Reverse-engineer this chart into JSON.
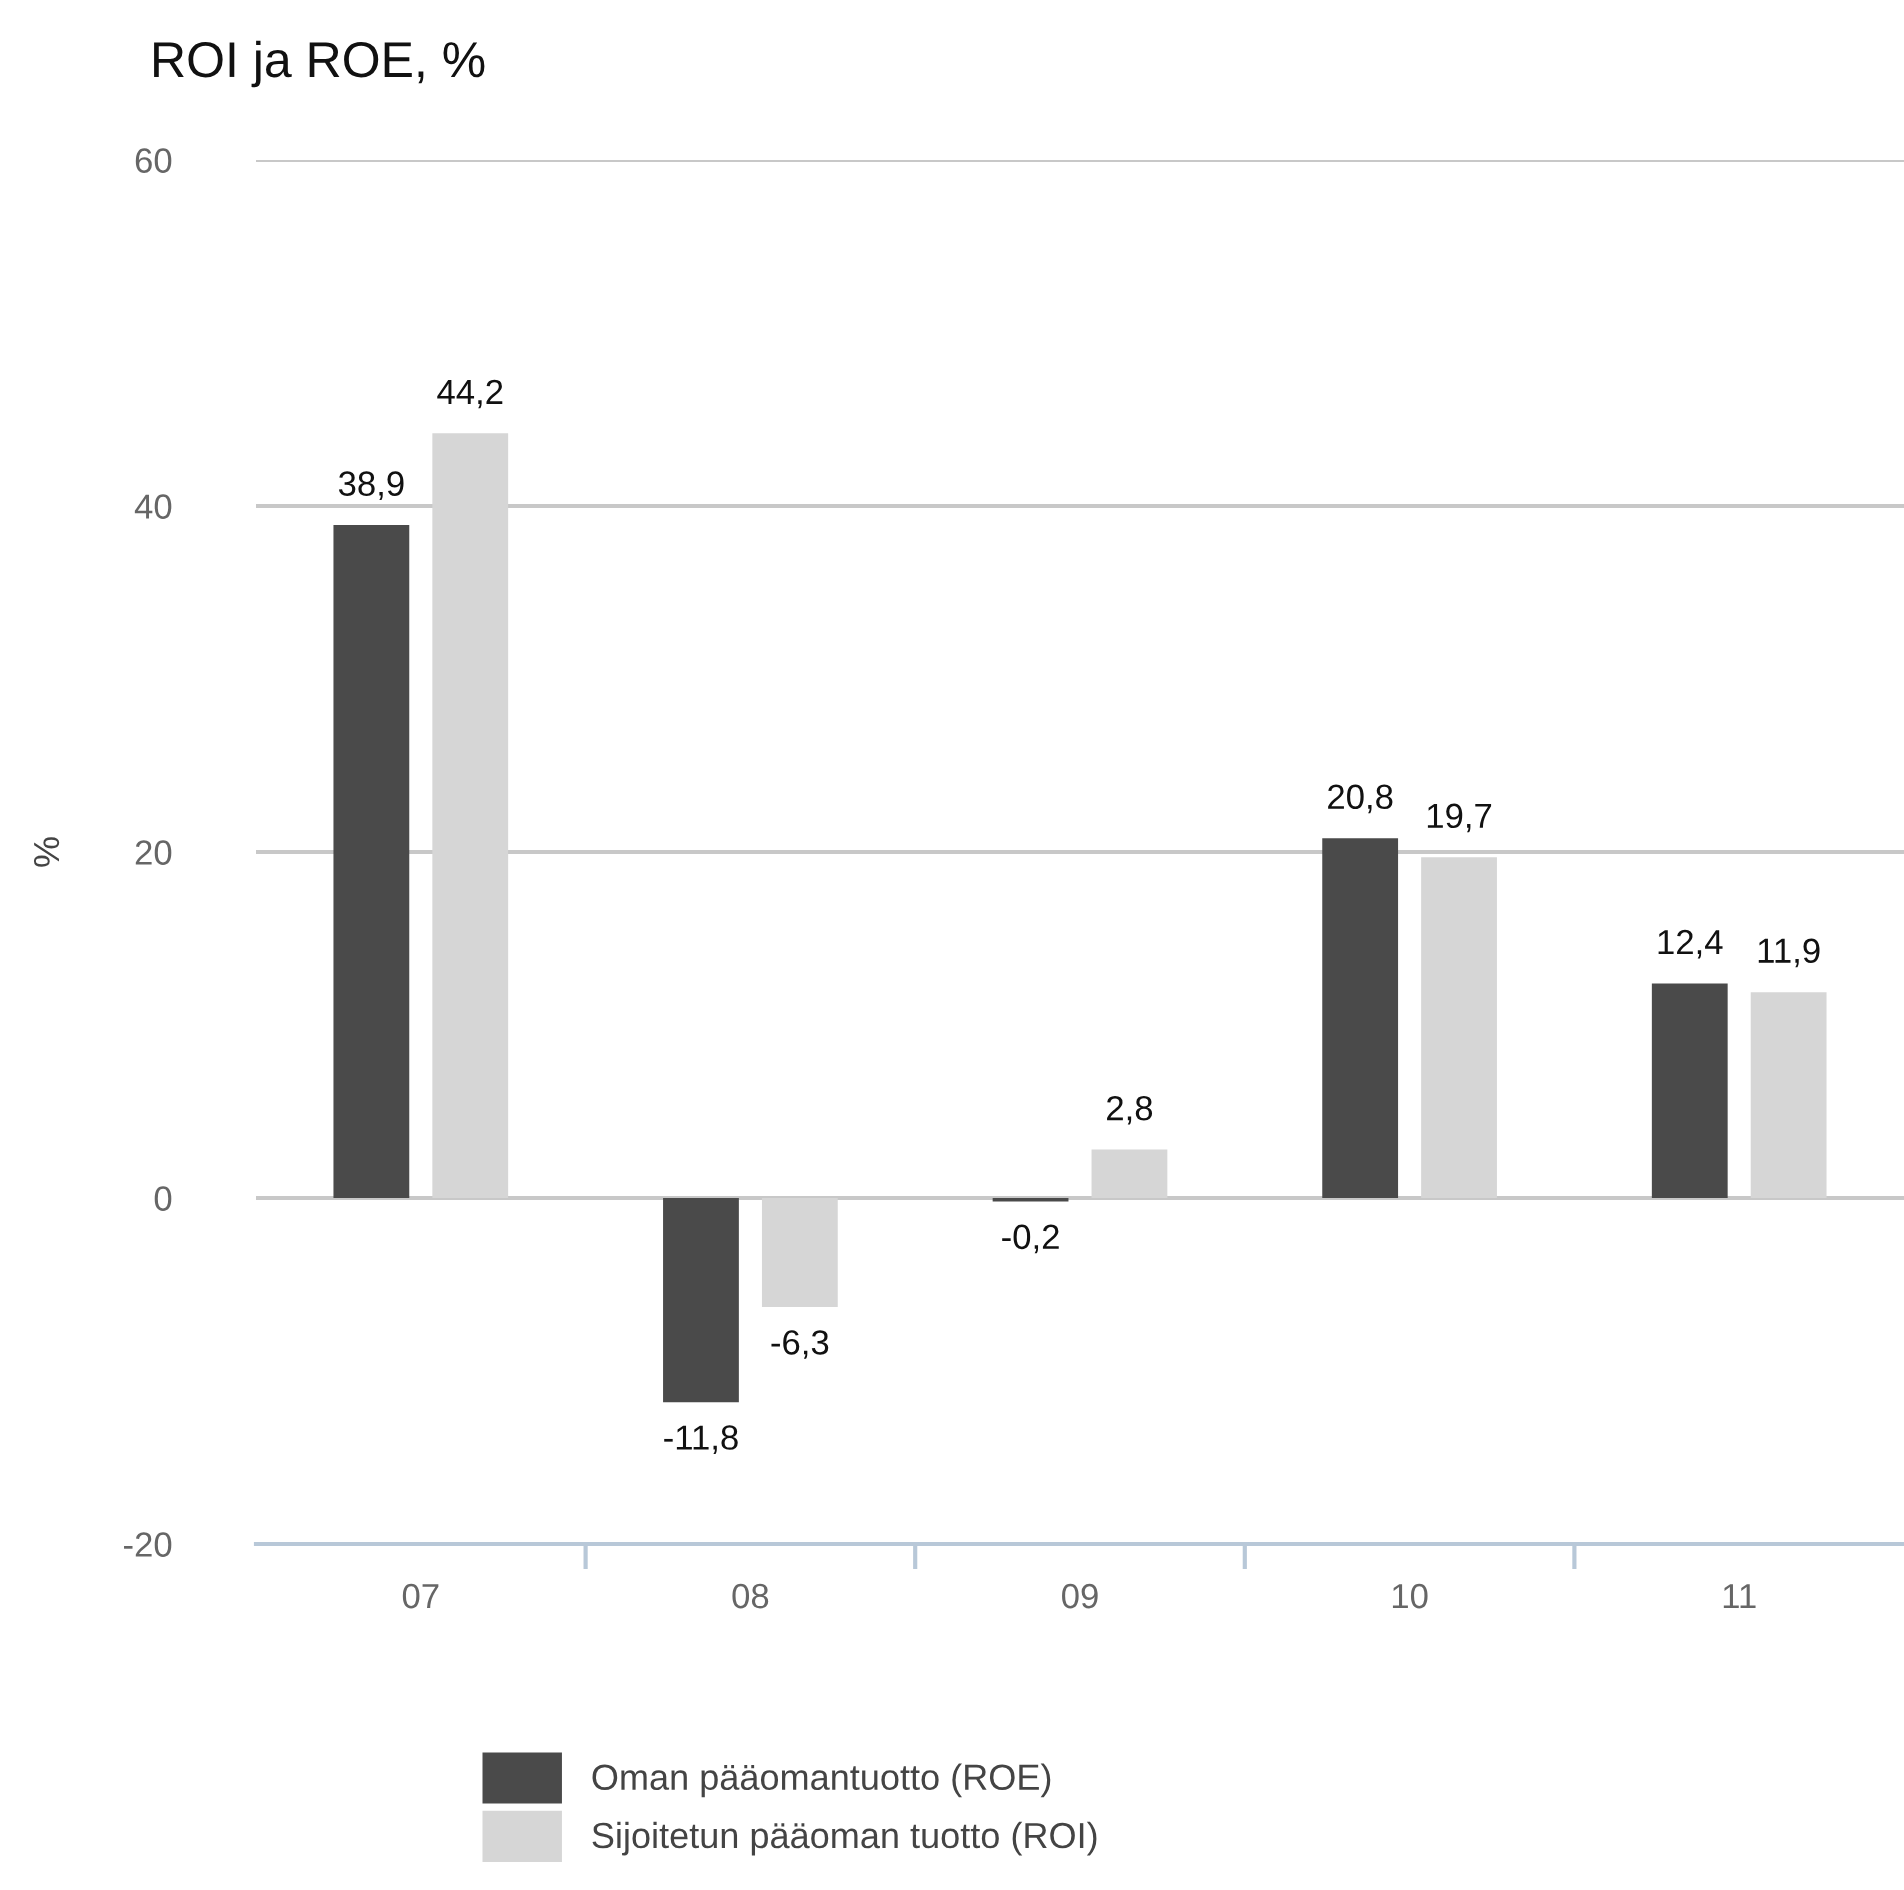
{
  "chart_data": {
    "type": "bar",
    "title": "ROI ja ROE, %",
    "ylabel": "%",
    "categories": [
      "07",
      "08",
      "09",
      "10",
      "11"
    ],
    "series": [
      {
        "name": "Oman pääomantuotto (ROE)",
        "color": "#4a4a4a",
        "values": [
          38.9,
          -11.8,
          -0.2,
          20.8,
          12.4
        ],
        "value_labels": [
          "38,9",
          "-11,8",
          "-0,2",
          "20,8",
          "12,4"
        ]
      },
      {
        "name": "Sijoitetun pääoman tuotto (ROI)",
        "color": "#d6d6d6",
        "values": [
          44.2,
          -6.3,
          2.8,
          19.7,
          11.9
        ],
        "value_labels": [
          "44,2",
          "-6,3",
          "2,8",
          "19,7",
          "11,9"
        ]
      }
    ],
    "ylim": [
      -20,
      60
    ],
    "yticks": [
      -20,
      0,
      20,
      40,
      60
    ],
    "grid": "y",
    "legend": "bottom"
  }
}
